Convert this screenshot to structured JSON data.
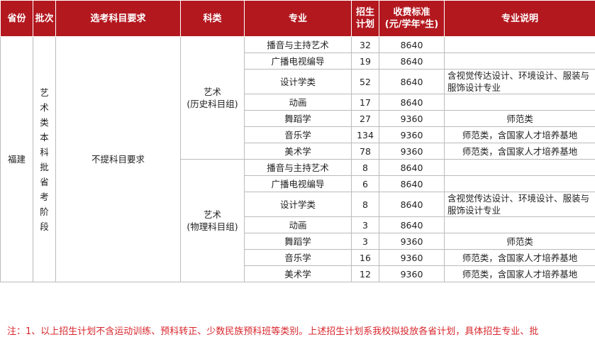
{
  "header": [
    "省份",
    "批次",
    "选考科目要求",
    "科类",
    "专业",
    "招生计划",
    [
      "收费标准",
      "(元/学年*生)"
    ],
    "专业说明"
  ],
  "province": "福建",
  "batch": "艺术类本科批省考阶段",
  "subject_requirement": "不提科目要求",
  "groups": [
    {
      "category": [
        "艺术",
        "(历史科目组)"
      ],
      "rows": [
        {
          "major": "播音与主持艺术",
          "plan": 32,
          "fee": 8640,
          "note": null
        },
        {
          "major": "广播电视编导",
          "plan": 19,
          "fee": 8640,
          "note": null
        },
        {
          "major": "设计学类",
          "plan": 52,
          "fee": 8640,
          "note": "含视觉传达设计、环境设计、服装与服饰设计专业"
        },
        {
          "major": "动画",
          "plan": 17,
          "fee": 8640,
          "note": null
        },
        {
          "major": "舞蹈学",
          "plan": 27,
          "fee": 9360,
          "note": "师范类"
        },
        {
          "major": "音乐学",
          "plan": 134,
          "fee": 9360,
          "note": "师范类，含国家人才培养基地"
        },
        {
          "major": "美术学",
          "plan": 78,
          "fee": 9360,
          "note": "师范类，含国家人才培养基地"
        }
      ]
    },
    {
      "category": [
        "艺术",
        "(物理科目组)"
      ],
      "rows": [
        {
          "major": "播音与主持艺术",
          "plan": 8,
          "fee": 8640,
          "note": null
        },
        {
          "major": "广播电视编导",
          "plan": 6,
          "fee": 8640,
          "note": null
        },
        {
          "major": "设计学类",
          "plan": 8,
          "fee": 8640,
          "note": "含视觉传达设计、环境设计、服装与服饰设计专业"
        },
        {
          "major": "动画",
          "plan": 3,
          "fee": 8640,
          "note": null
        },
        {
          "major": "舞蹈学",
          "plan": 3,
          "fee": 9360,
          "note": "师范类"
        },
        {
          "major": "音乐学",
          "plan": 16,
          "fee": 9360,
          "note": "师范类，含国家人才培养基地"
        },
        {
          "major": "美术学",
          "plan": 12,
          "fee": 9360,
          "note": "师范类，含国家人才培养基地"
        }
      ]
    }
  ],
  "footnote": "注：1、以上招生计划不含运动训练、预科转正、少数民族预科班等类别。上述招生计划系我校拟投放各省计划，具体招生专业、批"
}
